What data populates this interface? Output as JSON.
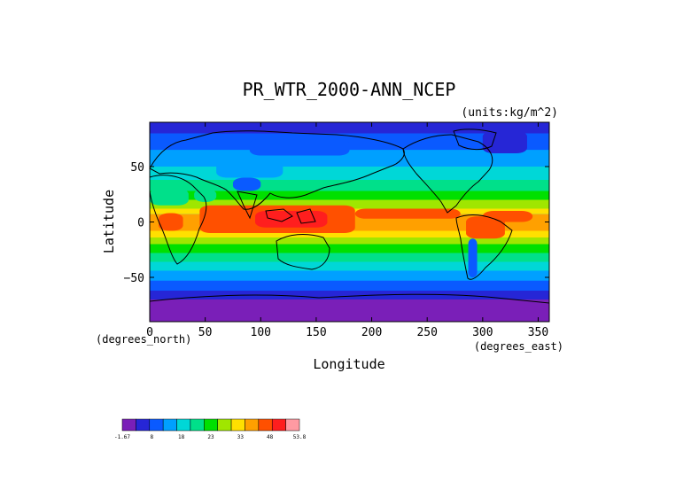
{
  "chart_data": {
    "type": "heatmap",
    "title": "PR_WTR_2000-ANN_NCEP",
    "units_label": "(units:kg/m^2)",
    "xlabel": "Longitude",
    "ylabel": "Latitude",
    "x_unit_label": "(degrees_east)",
    "y_unit_label": "(degrees_north)",
    "xlim": [
      0,
      360
    ],
    "ylim": [
      -90,
      90
    ],
    "xticks": [
      "0",
      "50",
      "100",
      "150",
      "200",
      "250",
      "300",
      "350"
    ],
    "yticks": [
      "50",
      "0",
      "−50"
    ],
    "colorbar": {
      "tick_labels": [
        "-1.67",
        "8",
        "18",
        "23",
        "33",
        "48",
        "53.8"
      ],
      "colors": [
        "#7a1fb8",
        "#2626d6",
        "#0a5aff",
        "#00a0ff",
        "#00d7d7",
        "#00e08a",
        "#00e000",
        "#a0e600",
        "#ffe000",
        "#ffa000",
        "#ff5000",
        "#ff1e1e",
        "#ff9aa2"
      ]
    },
    "zonal_bands": [
      {
        "lat_min": 80,
        "lat_max": 90,
        "color": "#2626d6"
      },
      {
        "lat_min": 65,
        "lat_max": 80,
        "color": "#0a5aff"
      },
      {
        "lat_min": 50,
        "lat_max": 65,
        "color": "#00a0ff"
      },
      {
        "lat_min": 38,
        "lat_max": 50,
        "color": "#00d7d7"
      },
      {
        "lat_min": 28,
        "lat_max": 38,
        "color": "#00e08a"
      },
      {
        "lat_min": 20,
        "lat_max": 28,
        "color": "#00e000"
      },
      {
        "lat_min": 12,
        "lat_max": 20,
        "color": "#a0e600"
      },
      {
        "lat_min": 7,
        "lat_max": 12,
        "color": "#ffe000"
      },
      {
        "lat_min": -8,
        "lat_max": 7,
        "color": "#ffa000"
      },
      {
        "lat_min": -14,
        "lat_max": -8,
        "color": "#ffe000"
      },
      {
        "lat_min": -20,
        "lat_max": -14,
        "color": "#a0e600"
      },
      {
        "lat_min": -28,
        "lat_max": -20,
        "color": "#00e000"
      },
      {
        "lat_min": -36,
        "lat_max": -28,
        "color": "#00e08a"
      },
      {
        "lat_min": -44,
        "lat_max": -36,
        "color": "#00d7d7"
      },
      {
        "lat_min": -53,
        "lat_max": -44,
        "color": "#00a0ff"
      },
      {
        "lat_min": -62,
        "lat_max": -53,
        "color": "#0a5aff"
      },
      {
        "lat_min": -70,
        "lat_max": -62,
        "color": "#2626d6"
      },
      {
        "lat_min": -90,
        "lat_max": -70,
        "color": "#7a1fb8"
      }
    ],
    "regional_patches": [
      {
        "name": "warm-pool-indo-pacific",
        "lon_min": 45,
        "lon_max": 185,
        "lat_min": -10,
        "lat_max": 15,
        "color": "#ff5000"
      },
      {
        "name": "warm-pool-core",
        "lon_min": 95,
        "lon_max": 160,
        "lat_min": -5,
        "lat_max": 10,
        "color": "#ff1e1e"
      },
      {
        "name": "pacific-itcz",
        "lon_min": 185,
        "lon_max": 280,
        "lat_min": 3,
        "lat_max": 12,
        "color": "#ff5000"
      },
      {
        "name": "atlantic-itcz",
        "lon_min": 300,
        "lon_max": 345,
        "lat_min": 0,
        "lat_max": 10,
        "color": "#ff5000"
      },
      {
        "name": "amazon",
        "lon_min": 285,
        "lon_max": 320,
        "lat_min": -15,
        "lat_max": 5,
        "color": "#ff5000"
      },
      {
        "name": "central-africa",
        "lon_min": 8,
        "lon_max": 30,
        "lat_min": -8,
        "lat_max": 8,
        "color": "#ff5000"
      },
      {
        "name": "sahara",
        "lon_min": 0,
        "lon_max": 35,
        "lat_min": 15,
        "lat_max": 30,
        "color": "#00e08a"
      },
      {
        "name": "arabia",
        "lon_min": 40,
        "lon_max": 60,
        "lat_min": 18,
        "lat_max": 30,
        "color": "#00e08a"
      },
      {
        "name": "tibet",
        "lon_min": 75,
        "lon_max": 100,
        "lat_min": 28,
        "lat_max": 40,
        "color": "#0a5aff"
      },
      {
        "name": "central-asia",
        "lon_min": 60,
        "lon_max": 120,
        "lat_min": 40,
        "lat_max": 55,
        "color": "#00a0ff"
      },
      {
        "name": "greenland",
        "lon_min": 300,
        "lon_max": 340,
        "lat_min": 62,
        "lat_max": 82,
        "color": "#2626d6"
      },
      {
        "name": "siberia",
        "lon_min": 90,
        "lon_max": 180,
        "lat_min": 60,
        "lat_max": 75,
        "color": "#0a5aff"
      },
      {
        "name": "andes",
        "lon_min": 287,
        "lon_max": 295,
        "lat_min": -50,
        "lat_max": -15,
        "color": "#0a5aff"
      },
      {
        "name": "antarctica",
        "lon_min": 0,
        "lon_max": 360,
        "lat_min": -90,
        "lat_max": -72,
        "color": "#7a1fb8"
      }
    ]
  }
}
